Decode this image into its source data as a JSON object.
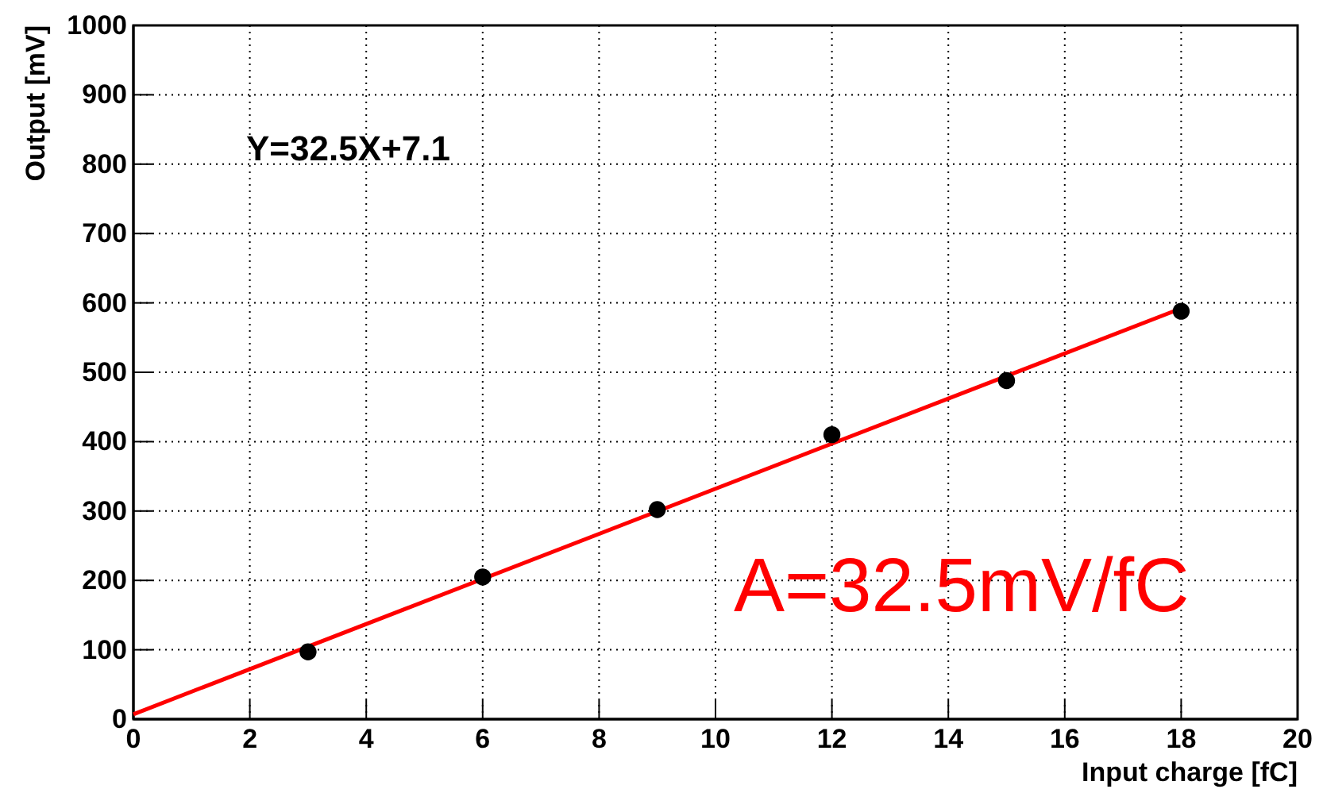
{
  "chart_data": {
    "type": "scatter",
    "xlabel": "Input charge [fC]",
    "ylabel": "Output [mV]",
    "xlim": [
      0,
      20
    ],
    "ylim": [
      0,
      1000
    ],
    "xticks": [
      0,
      2,
      4,
      6,
      8,
      10,
      12,
      14,
      16,
      18,
      20
    ],
    "yticks": [
      0,
      100,
      200,
      300,
      400,
      500,
      600,
      700,
      800,
      900,
      1000
    ],
    "grid": true,
    "marker": "circle",
    "series": [
      {
        "color": "#000000",
        "x": [
          3,
          6,
          9,
          12,
          15,
          18
        ],
        "values": [
          97,
          205,
          302,
          410,
          488,
          588
        ]
      },
      {
        "type": "line",
        "color": "#ff0000",
        "x": [
          0,
          18
        ],
        "values": [
          7.1,
          592.1
        ],
        "marker": "none",
        "line_style": "solid"
      }
    ],
    "annotations": [
      "Y=32.5X+7.1",
      "A=32.5mV/fC"
    ]
  }
}
